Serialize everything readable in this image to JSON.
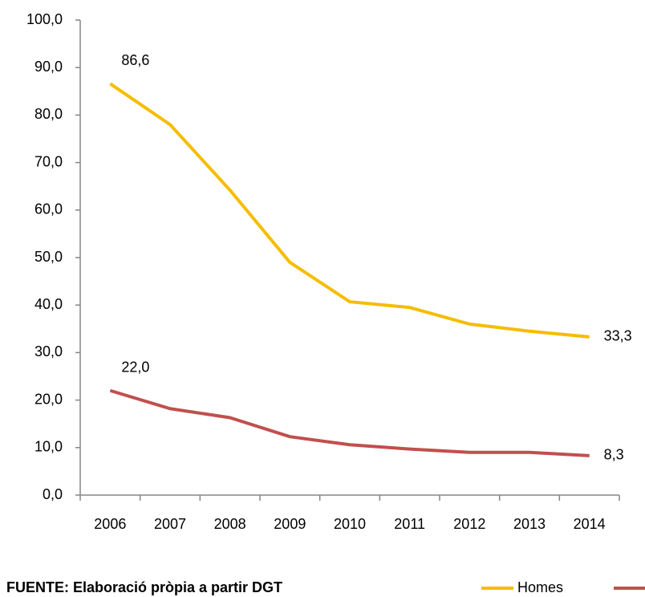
{
  "chart_data": {
    "type": "line",
    "categories": [
      "2006",
      "2007",
      "2008",
      "2009",
      "2010",
      "2011",
      "2012",
      "2013",
      "2014"
    ],
    "series": [
      {
        "name": "Homes",
        "color": "#f5bd00",
        "values": [
          86.6,
          78.0,
          64.2,
          49.0,
          40.7,
          39.5,
          36.0,
          34.5,
          33.3
        ],
        "value_labels": [
          "86,6",
          null,
          null,
          null,
          null,
          null,
          null,
          null,
          "33,3"
        ]
      },
      {
        "color": "#c0504d",
        "values": [
          22.0,
          18.2,
          16.3,
          12.3,
          10.6,
          9.7,
          9.0,
          9.0,
          8.3
        ],
        "value_labels": [
          "22,0",
          null,
          null,
          null,
          null,
          null,
          null,
          null,
          "8,3"
        ]
      }
    ],
    "ylim": [
      0,
      100
    ],
    "yticks": [
      {
        "value": 0,
        "label": "0,0"
      },
      {
        "value": 10,
        "label": "10,0"
      },
      {
        "value": 20,
        "label": "20,0"
      },
      {
        "value": 30,
        "label": "30,0"
      },
      {
        "value": 40,
        "label": "40,0"
      },
      {
        "value": 50,
        "label": "50,0"
      },
      {
        "value": 60,
        "label": "60,0"
      },
      {
        "value": 70,
        "label": "70,0"
      },
      {
        "value": 80,
        "label": "80,0"
      },
      {
        "value": 90,
        "label": "90,0"
      },
      {
        "value": 100,
        "label": "100,0"
      }
    ],
    "source": "FUENTE: Elaboració pròpia a partir DGT"
  }
}
